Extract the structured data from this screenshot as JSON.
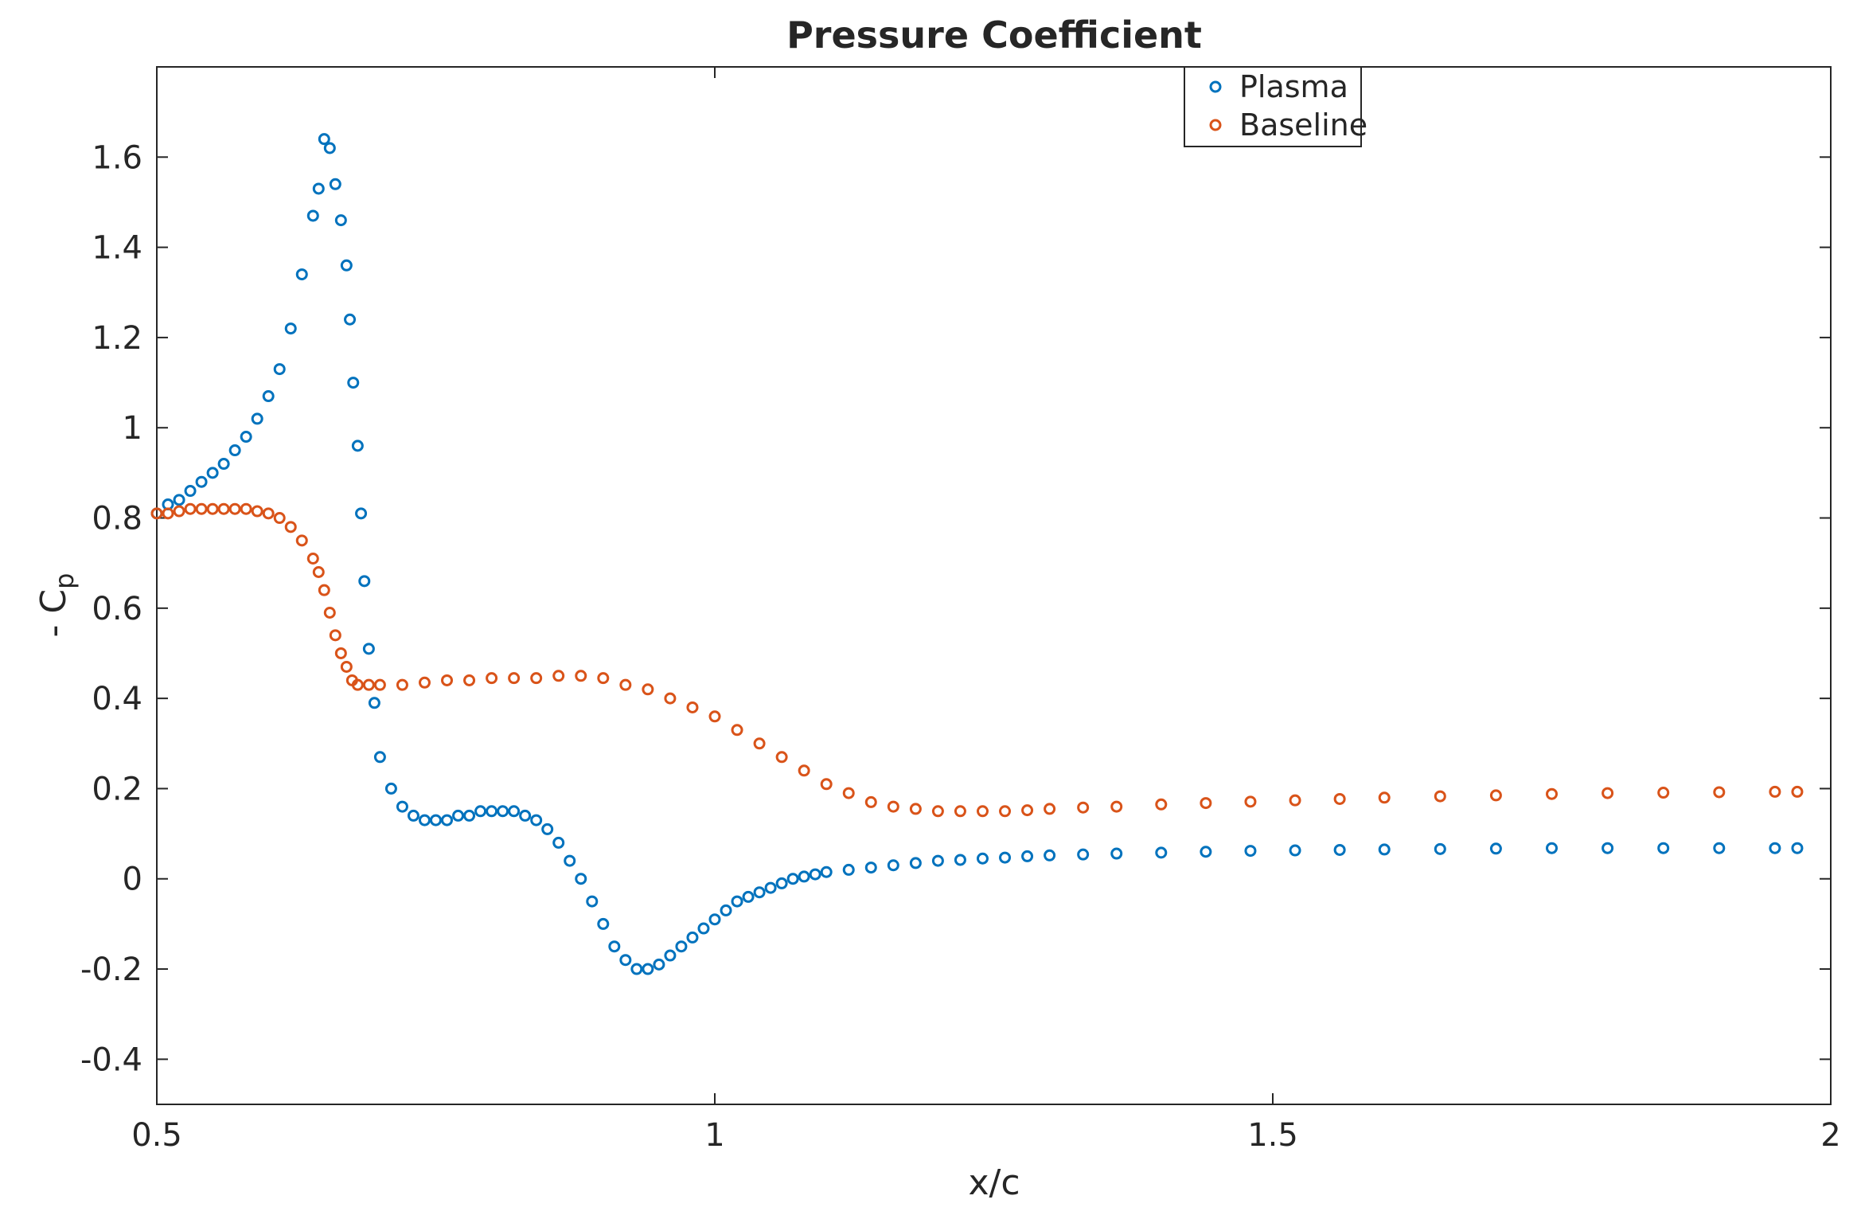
{
  "chart_data": {
    "type": "scatter",
    "title": "Pressure Coefficient",
    "xlabel": "x/c",
    "ylabel": "- C",
    "ylabel_subscript": "p",
    "xlim": [
      0.5,
      2
    ],
    "ylim": [
      -0.5,
      1.8
    ],
    "xticks": [
      0.5,
      1,
      1.5,
      2
    ],
    "xtick_labels": [
      "0.5",
      "1",
      "1.5",
      "2"
    ],
    "yticks": [
      -0.4,
      -0.2,
      0,
      0.2,
      0.4,
      0.6,
      0.8,
      1,
      1.2,
      1.4,
      1.6
    ],
    "ytick_labels": [
      "-0.4",
      "-0.2",
      "0",
      "0.2",
      "0.4",
      "0.6",
      "0.8",
      "1",
      "1.2",
      "1.4",
      "1.6"
    ],
    "grid": false,
    "legend": "top-right",
    "series": [
      {
        "name": "Plasma",
        "color": "#0072BD",
        "x": [
          0.5,
          0.51,
          0.52,
          0.53,
          0.54,
          0.55,
          0.56,
          0.57,
          0.58,
          0.59,
          0.6,
          0.61,
          0.62,
          0.63,
          0.64,
          0.645,
          0.65,
          0.655,
          0.66,
          0.665,
          0.67,
          0.673,
          0.676,
          0.68,
          0.683,
          0.686,
          0.69,
          0.695,
          0.7,
          0.71,
          0.72,
          0.73,
          0.74,
          0.75,
          0.76,
          0.77,
          0.78,
          0.79,
          0.8,
          0.81,
          0.82,
          0.83,
          0.84,
          0.85,
          0.86,
          0.87,
          0.88,
          0.89,
          0.9,
          0.91,
          0.92,
          0.93,
          0.94,
          0.95,
          0.96,
          0.97,
          0.98,
          0.99,
          1.0,
          1.01,
          1.02,
          1.03,
          1.04,
          1.05,
          1.06,
          1.07,
          1.08,
          1.09,
          1.1,
          1.12,
          1.14,
          1.16,
          1.18,
          1.2,
          1.22,
          1.24,
          1.26,
          1.28,
          1.3,
          1.33,
          1.36,
          1.4,
          1.44,
          1.48,
          1.52,
          1.56,
          1.6,
          1.65,
          1.7,
          1.75,
          1.8,
          1.85,
          1.9,
          1.95,
          1.97
        ],
        "y": [
          0.81,
          0.83,
          0.84,
          0.86,
          0.88,
          0.9,
          0.92,
          0.95,
          0.98,
          1.02,
          1.07,
          1.13,
          1.22,
          1.34,
          1.47,
          1.53,
          1.64,
          1.62,
          1.54,
          1.46,
          1.36,
          1.24,
          1.1,
          0.96,
          0.81,
          0.66,
          0.51,
          0.39,
          0.27,
          0.2,
          0.16,
          0.14,
          0.13,
          0.13,
          0.13,
          0.14,
          0.14,
          0.15,
          0.15,
          0.15,
          0.15,
          0.14,
          0.13,
          0.11,
          0.08,
          0.04,
          0.0,
          -0.05,
          -0.1,
          -0.15,
          -0.18,
          -0.2,
          -0.2,
          -0.19,
          -0.17,
          -0.15,
          -0.13,
          -0.11,
          -0.09,
          -0.07,
          -0.05,
          -0.04,
          -0.03,
          -0.02,
          -0.01,
          0.0,
          0.005,
          0.01,
          0.015,
          0.02,
          0.025,
          0.03,
          0.035,
          0.04,
          0.042,
          0.045,
          0.047,
          0.05,
          0.052,
          0.054,
          0.056,
          0.058,
          0.06,
          0.062,
          0.063,
          0.064,
          0.065,
          0.066,
          0.067,
          0.068,
          0.068,
          0.068,
          0.068,
          0.068,
          0.068
        ]
      },
      {
        "name": "Baseline",
        "color": "#D95319",
        "x": [
          0.5,
          0.51,
          0.52,
          0.53,
          0.54,
          0.55,
          0.56,
          0.57,
          0.58,
          0.59,
          0.6,
          0.61,
          0.62,
          0.63,
          0.64,
          0.645,
          0.65,
          0.655,
          0.66,
          0.665,
          0.67,
          0.675,
          0.68,
          0.69,
          0.7,
          0.72,
          0.74,
          0.76,
          0.78,
          0.8,
          0.82,
          0.84,
          0.86,
          0.88,
          0.9,
          0.92,
          0.94,
          0.96,
          0.98,
          1.0,
          1.02,
          1.04,
          1.06,
          1.08,
          1.1,
          1.12,
          1.14,
          1.16,
          1.18,
          1.2,
          1.22,
          1.24,
          1.26,
          1.28,
          1.3,
          1.33,
          1.36,
          1.4,
          1.44,
          1.48,
          1.52,
          1.56,
          1.6,
          1.65,
          1.7,
          1.75,
          1.8,
          1.85,
          1.9,
          1.95,
          1.97
        ],
        "y": [
          0.81,
          0.81,
          0.815,
          0.82,
          0.82,
          0.82,
          0.82,
          0.82,
          0.82,
          0.815,
          0.81,
          0.8,
          0.78,
          0.75,
          0.71,
          0.68,
          0.64,
          0.59,
          0.54,
          0.5,
          0.47,
          0.44,
          0.43,
          0.43,
          0.43,
          0.43,
          0.435,
          0.44,
          0.44,
          0.445,
          0.445,
          0.445,
          0.45,
          0.45,
          0.445,
          0.43,
          0.42,
          0.4,
          0.38,
          0.36,
          0.33,
          0.3,
          0.27,
          0.24,
          0.21,
          0.19,
          0.17,
          0.16,
          0.155,
          0.15,
          0.15,
          0.15,
          0.15,
          0.152,
          0.155,
          0.158,
          0.16,
          0.165,
          0.168,
          0.171,
          0.174,
          0.177,
          0.18,
          0.183,
          0.185,
          0.188,
          0.19,
          0.191,
          0.192,
          0.193,
          0.193
        ]
      }
    ]
  }
}
